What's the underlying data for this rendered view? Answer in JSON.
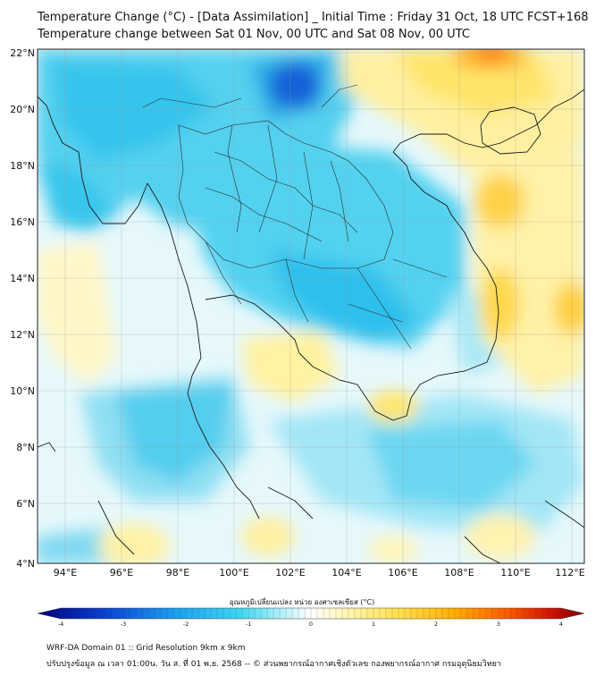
{
  "header": {
    "title_line1": "Temperature Change (°C) - [Data Assimilation] _ Initial Time : Friday 31 Oct, 18 UTC FCST+168",
    "title_line2": "Temperature change between Sat 01 Nov, 00 UTC and Sat 08 Nov, 00 UTC"
  },
  "map": {
    "lon_range": [
      93,
      112.5
    ],
    "lat_range": [
      4,
      22.3
    ],
    "lon_ticks": [
      "94°E",
      "96°E",
      "98°E",
      "100°E",
      "102°E",
      "104°E",
      "106°E",
      "108°E",
      "110°E",
      "112°E"
    ],
    "lat_ticks": [
      "22°N",
      "20°N",
      "18°N",
      "16°N",
      "14°N",
      "12°N",
      "10°N",
      "8°N",
      "6°N",
      "4°N"
    ]
  },
  "colorbar": {
    "label": "อุณหภูมิเปลี่ยนแปลง หน่วย องศาเซลเซียส (°C)",
    "ticks": [
      "-4",
      "-3",
      "-2",
      "-1",
      "0",
      "1",
      "2",
      "3",
      "4"
    ],
    "colors": {
      "cold_max": "#00007a",
      "cold": "#0c5fd6",
      "cool": "#2fd0f0",
      "neutral": "#ffffff",
      "warm": "#ffe14d",
      "hot": "#ff7a00",
      "hot_max": "#7a0000"
    }
  },
  "footer": {
    "line1": "WRF-DA Domain 01 :: Grid Resolution 9km x 9km",
    "line2": "ปรับปรุงข้อมูล ณ เวลา 01:00น. วัน ส. ที่ 01 พ.ย. 2568 -- © ส่วนพยากรณ์อากาศเชิงตัวเลข กองพยากรณ์อากาศ กรมอุตุนิยมวิทยา"
  }
}
